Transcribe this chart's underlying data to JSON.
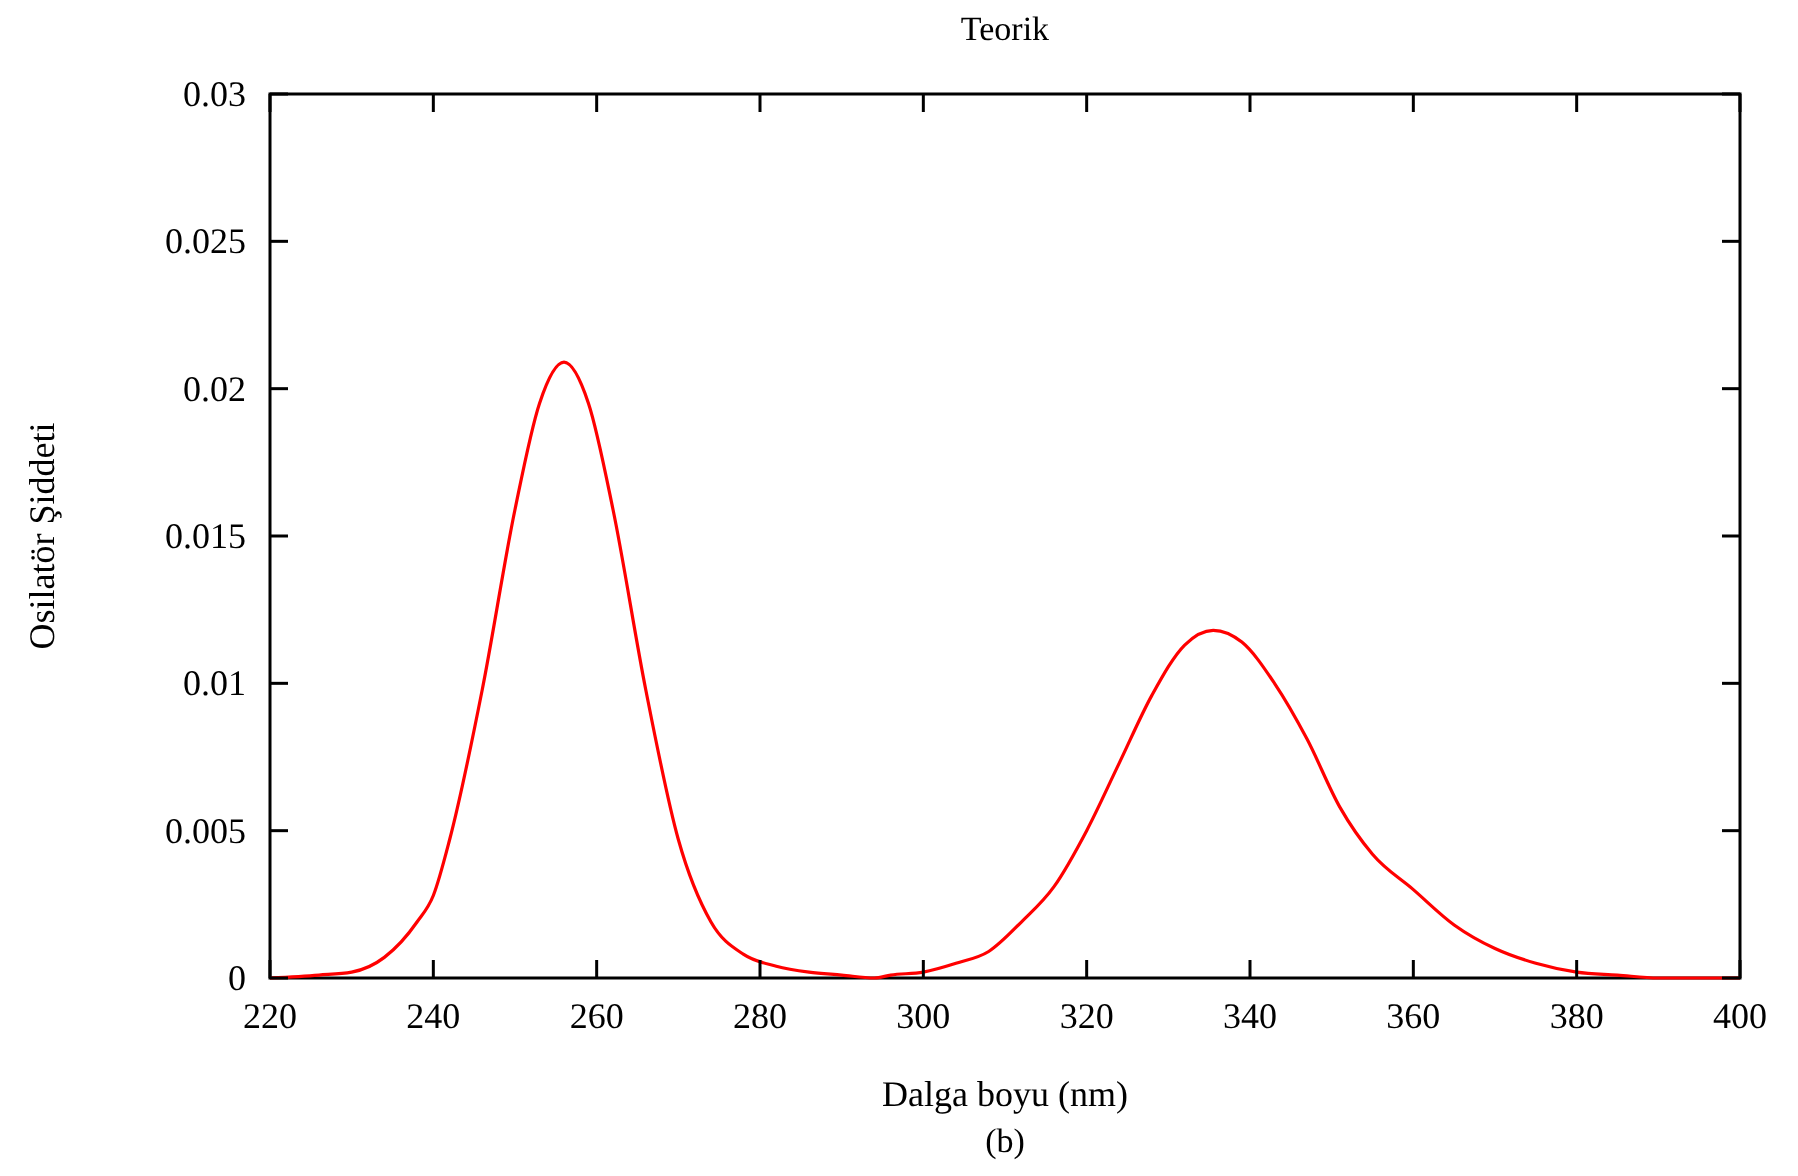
{
  "chart_data": {
    "type": "line",
    "title": "Teorik",
    "xlabel": "Dalga boyu (nm)",
    "ylabel": "Osilatör Şiddeti",
    "annotations": [
      "(b)"
    ],
    "xlim": [
      220,
      400
    ],
    "xticks": [
      220,
      240,
      260,
      280,
      300,
      320,
      340,
      360,
      380,
      400
    ],
    "ylim": [
      0,
      0.03
    ],
    "yticks": [
      0,
      0.005,
      0.01,
      0.015,
      0.02,
      0.025,
      0.03
    ],
    "grid": false,
    "marker": "none",
    "line_style": "solid",
    "series": [
      {
        "color": "#ff0000",
        "x": [
          220,
          226,
          230,
          234,
          238,
          240,
          242,
          246,
          250,
          253,
          256,
          259,
          262,
          266,
          270,
          274,
          278,
          282,
          286,
          290,
          294,
          296,
          300,
          304,
          308,
          312,
          316,
          320,
          324,
          328,
          332,
          335.5,
          339,
          343,
          347,
          351,
          355,
          360,
          365,
          370,
          375,
          380,
          385,
          390,
          400
        ],
        "values": [
          0,
          0.0001,
          0.0002,
          0.0007,
          0.0019,
          0.0028,
          0.0047,
          0.0098,
          0.0159,
          0.0195,
          0.0209,
          0.0195,
          0.0159,
          0.0098,
          0.0047,
          0.0019,
          0.0008,
          0.0004,
          0.0002,
          0.0001,
          0,
          0.0001,
          0.0002,
          0.0005,
          0.0009,
          0.0019,
          0.0031,
          0.005,
          0.0073,
          0.0096,
          0.0113,
          0.0118,
          0.0114,
          0.01,
          0.0081,
          0.0058,
          0.0042,
          0.003,
          0.0018,
          0.001,
          0.0005,
          0.0002,
          0.0001,
          0,
          0
        ]
      }
    ]
  }
}
